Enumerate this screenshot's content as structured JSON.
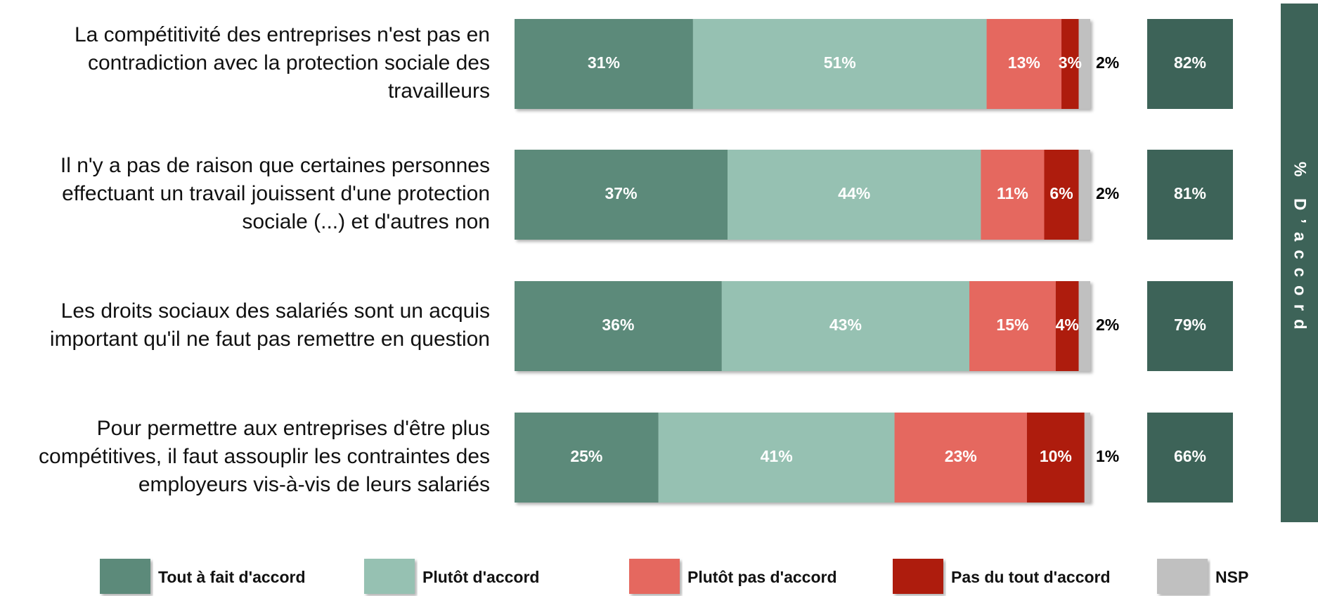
{
  "chart_data": {
    "type": "stacked-bar-horizontal",
    "categories": [
      [
        "La compétitivité des entreprises n'est pas en",
        "contradiction avec la protection sociale des",
        "travailleurs"
      ],
      [
        "Il n'y a pas de raison que certaines personnes",
        "effectuant un travail jouissent d'une protection",
        "sociale (...) et d'autres non"
      ],
      [
        "Les droits sociaux des salariés sont un acquis",
        "important qu'il ne faut pas remettre en question"
      ],
      [
        "Pour permettre aux entreprises d'être plus",
        "compétitives, il faut assouplir les contraintes des",
        "employeurs vis-à-vis de leurs salariés"
      ]
    ],
    "series": [
      {
        "name": "Tout à fait d'accord",
        "color": "#5b8a7a",
        "values": [
          31,
          37,
          36,
          25
        ],
        "value_labels": [
          "31%",
          "37%",
          "36%",
          "25%"
        ]
      },
      {
        "name": "Plutôt d'accord",
        "color": "#96c1b2",
        "values": [
          51,
          44,
          43,
          41
        ],
        "value_labels": [
          "51%",
          "44%",
          "43%",
          "41%"
        ]
      },
      {
        "name": "Plutôt pas d'accord",
        "color": "#e5675f",
        "values": [
          13,
          11,
          15,
          23
        ],
        "value_labels": [
          "13%",
          "11%",
          "15%",
          "23%"
        ]
      },
      {
        "name": "Pas du tout d'accord",
        "color": "#ae1a0e",
        "values": [
          3,
          6,
          4,
          10
        ],
        "value_labels": [
          "3%",
          "6%",
          "4%",
          "10%"
        ]
      },
      {
        "name": "NSP",
        "color": "#c0c0c0",
        "values": [
          2,
          2,
          2,
          1
        ],
        "value_labels": [
          "2%",
          "2%",
          "2%",
          "1%"
        ]
      }
    ],
    "xlim": [
      0,
      100
    ],
    "totals": {
      "title": "% D’accord",
      "color": "#3d6358",
      "values": [
        82,
        81,
        79,
        66
      ],
      "value_labels": [
        "82%",
        "81%",
        "79%",
        "66%"
      ]
    }
  }
}
